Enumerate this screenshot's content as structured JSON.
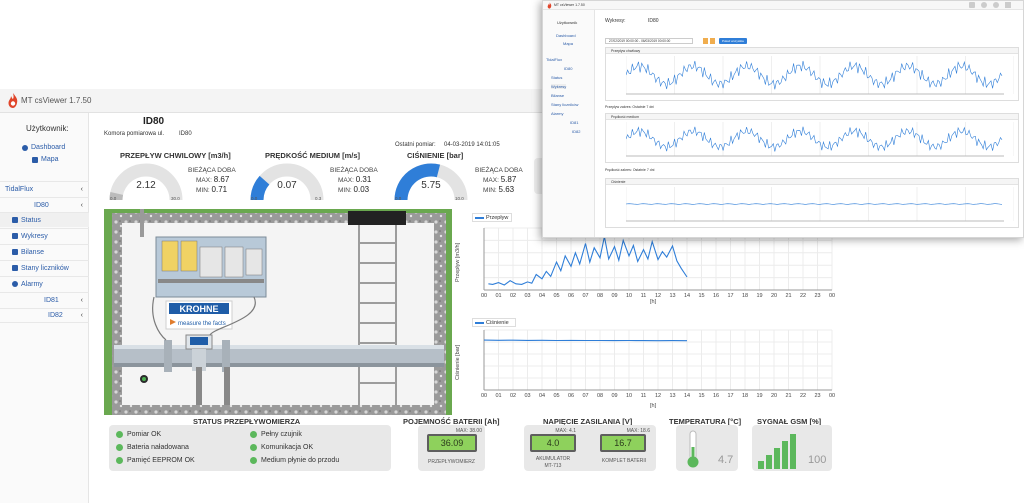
{
  "app": {
    "title": "MT csViewer 1.7.50",
    "logo_icon": "flame-icon"
  },
  "sidebar": {
    "user_label": "Użytkownik:",
    "links": [
      {
        "label": "Dashboard",
        "icon": "dashboard-icon"
      },
      {
        "label": "Mapa",
        "icon": "map-icon"
      }
    ],
    "tree": [
      {
        "label": "TidalFlux",
        "chevron": "‹"
      },
      {
        "label": "ID80",
        "chevron": "‹"
      }
    ],
    "submenu": [
      {
        "label": "Status",
        "icon": "status-icon"
      },
      {
        "label": "Wykresy",
        "icon": "chart-icon"
      },
      {
        "label": "Bilanse",
        "icon": "balance-icon"
      },
      {
        "label": "Stany liczników",
        "icon": "counter-icon"
      },
      {
        "label": "Alarmy",
        "icon": "alarm-icon"
      }
    ],
    "more": [
      {
        "label": "ID81",
        "chevron": "‹"
      },
      {
        "label": "ID82",
        "chevron": "‹"
      }
    ]
  },
  "main": {
    "title": "ID80",
    "chamber_label": "Komora pomiarowa ul.",
    "chamber_value": "ID80",
    "last_measure_label": "Ostatni pomiar:",
    "last_measure_value": "04-03-2019 14:01:05",
    "cut_label_1": "A",
    "cut_label_2": "P"
  },
  "gauges": [
    {
      "title": "PRZEPŁYW CHWILOWY [m3/h]",
      "value": "2.12",
      "min": "0.0",
      "max": "30.0",
      "fill_fraction": 0.07,
      "day_label": "BIEŻĄCA DOBA",
      "max_label": "MAX:",
      "max_value": "8.67",
      "min_label": "MIN:",
      "min_value": "0.71",
      "color": "#bbbbbb"
    },
    {
      "title": "PRĘDKOŚĆ MEDIUM [m/s]",
      "value": "0.07",
      "min": "0.0",
      "max": "0.3",
      "fill_fraction": 0.23,
      "day_label": "BIEŻĄCA DOBA",
      "max_label": "MAX:",
      "max_value": "0.31",
      "min_label": "MIN:",
      "min_value": "0.03",
      "color": "#2f7ed8"
    },
    {
      "title": "CIŚNIENIE [bar]",
      "value": "5.75",
      "min": "0.0",
      "max": "10.0",
      "fill_fraction": 0.58,
      "day_label": "BIEŻĄCA DOBA",
      "max_label": "MAX:",
      "max_value": "5.87",
      "min_label": "MIN:",
      "min_value": "5.63",
      "color": "#2f7ed8"
    }
  ],
  "diagram": {
    "brand": "KROHNE",
    "tagline": "measure the facts"
  },
  "chart_data": [
    {
      "type": "line",
      "series": [
        {
          "name": "Przepływ",
          "color": "#2f7ed8",
          "x": [
            0.3,
            0.6,
            1,
            1.4,
            1.8,
            2.2,
            2.6,
            3,
            3.3,
            3.6,
            4,
            4.3,
            4.6,
            5,
            5.3,
            5.6,
            6,
            6.3,
            6.6,
            7,
            7.3,
            7.6,
            8,
            8.3,
            8.6,
            9,
            9.3,
            9.6,
            10,
            10.3,
            10.6,
            11,
            11.3,
            11.6,
            12,
            12.3,
            12.6,
            13,
            13.3,
            13.6,
            14
          ],
          "y": [
            1.0,
            0.9,
            1.2,
            0.8,
            1.5,
            1.0,
            0.9,
            1.3,
            1.1,
            2.5,
            1.8,
            3.0,
            2.2,
            4.5,
            3.1,
            5.5,
            3.8,
            6.0,
            4.2,
            7.5,
            4.5,
            6.8,
            5.2,
            8.6,
            5.0,
            7.0,
            4.8,
            8.0,
            5.5,
            7.2,
            4.6,
            6.5,
            5.0,
            7.8,
            4.9,
            6.2,
            5.3,
            7.1,
            4.7,
            3.5,
            2.1
          ]
        }
      ],
      "xlabel": "[h]",
      "ylabel": "Przepływ [m3/h]",
      "x_ticks": [
        "00",
        "01",
        "02",
        "03",
        "04",
        "05",
        "06",
        "07",
        "08",
        "09",
        "10",
        "11",
        "12",
        "13",
        "14",
        "15",
        "16",
        "17",
        "18",
        "19",
        "20",
        "21",
        "22",
        "23",
        "00"
      ],
      "xlim": [
        0,
        24
      ],
      "ylim": [
        0,
        10
      ],
      "grid": true,
      "legend": "top-left"
    },
    {
      "type": "line",
      "series": [
        {
          "name": "Ciśnienie",
          "color": "#2f7ed8",
          "x": [
            0,
            1,
            2,
            3,
            4,
            5,
            6,
            7,
            8,
            9,
            10,
            11,
            12,
            13,
            14
          ],
          "y": [
            5.82,
            5.8,
            5.81,
            5.79,
            5.8,
            5.78,
            5.79,
            5.77,
            5.78,
            5.76,
            5.77,
            5.76,
            5.75,
            5.76,
            5.75
          ]
        }
      ],
      "xlabel": "[h]",
      "ylabel": "Ciśnienie [bar]",
      "x_ticks": [
        "00",
        "01",
        "02",
        "03",
        "04",
        "05",
        "06",
        "07",
        "08",
        "09",
        "10",
        "11",
        "12",
        "13",
        "14",
        "15",
        "16",
        "17",
        "18",
        "19",
        "20",
        "21",
        "22",
        "23",
        "00"
      ],
      "xlim": [
        0,
        24
      ],
      "ylim": [
        0,
        7
      ],
      "grid": true,
      "legend": "top-left"
    }
  ],
  "status": {
    "title": "STATUS PRZEPŁYWOMIERZA",
    "left": [
      "Pomiar OK",
      "Bateria naładowana",
      "Pamięć EEPROM OK"
    ],
    "right": [
      "Pełny czujnik",
      "Komunikacja OK",
      "Medium płynie do przodu"
    ],
    "ok_color": "#5cb85c"
  },
  "battery": {
    "title": "POJEMNOŚĆ BATERII [Ah]",
    "value": "36.09",
    "max_label": "MAX: 38.00",
    "sub": "PRZEPŁYWOMIERZ",
    "fill_fraction": 0.95
  },
  "voltage": {
    "title": "NAPIĘCIE ZASILANIA [V]",
    "a_value": "4.0",
    "a_max": "MAX: 4.1",
    "a_sub1": "AKUMULATOR",
    "a_sub2": "MT-713",
    "b_value": "16.7",
    "b_max": "MAX: 18.6",
    "b_sub": "KOMPLET BATERII"
  },
  "temperature": {
    "title": "TEMPERATURA [°C]",
    "value": "4.7",
    "icon": "thermometer-icon"
  },
  "gsm": {
    "title": "SYGNAŁ GSM [%]",
    "value": "100",
    "icon": "signal-bars-icon"
  },
  "inset": {
    "user_label": "Użytkownik",
    "links": [
      "Dashboard",
      "Mapa"
    ],
    "tree": [
      "TidalFlux",
      "ID80"
    ],
    "submenu": [
      "Status",
      "Wykresy",
      "Bilanse",
      "Stany liczników",
      "Alarmy"
    ],
    "more": [
      "ID81",
      "ID82"
    ],
    "header_label": "Wykresy:",
    "header_value": "ID80",
    "date_range": "27/02/2019 00:00:00 - 06/03/2019 00:00:00",
    "show_button": "Pokaż wszystkie",
    "panel_titles": [
      "Przepływ chwilowy",
      "Prędkość medium",
      "Ciśnienie"
    ],
    "notes": [
      "Przepływ zakres: Ostatnie 7 dni",
      "Prędkość zakres: Ostatnie 7 dni"
    ],
    "top_icons": [
      "home-icon",
      "user-icon",
      "power-icon",
      "menu-icon"
    ]
  }
}
